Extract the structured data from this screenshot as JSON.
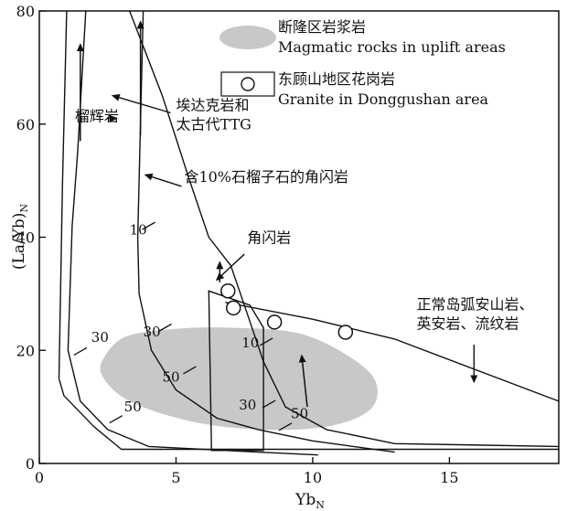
{
  "chart_data": {
    "type": "line",
    "xlabel": "Yb",
    "xlabel_sub": "N",
    "ylabel": "(La/Yb)",
    "ylabel_sub": "N",
    "xlim": [
      0,
      19
    ],
    "ylim": [
      0,
      80
    ],
    "xticks": [
      0,
      5,
      10,
      15
    ],
    "yticks": [
      0,
      20,
      40,
      60,
      80
    ],
    "legend": {
      "placement": "top-right",
      "entries": [
        {
          "marker": "shaded-region",
          "label_cn": "断隆区岩浆岩",
          "label_en": "Magmatic rocks in uplift areas"
        },
        {
          "marker": "open-circle",
          "label_cn": "东顾山地区花岗岩",
          "label_en": "Granite in Donggushan area"
        }
      ]
    },
    "colors": {
      "line": "#111111",
      "shade": "#c8c8c8",
      "marker_fill": "#ffffff"
    },
    "granite_points": {
      "name": "Granite in Donggushan area",
      "x": [
        6.9,
        7.1,
        8.6,
        11.2
      ],
      "y": [
        30.5,
        27.5,
        25.0,
        23.2
      ]
    },
    "shaded_region": {
      "name": "Magmatic rocks in uplift areas",
      "outline": [
        [
          2.4,
          19
        ],
        [
          3.2,
          22.5
        ],
        [
          5,
          23.8
        ],
        [
          7,
          24
        ],
        [
          9.5,
          23
        ],
        [
          11.3,
          19
        ],
        [
          12.3,
          14.5
        ],
        [
          12.1,
          9.5
        ],
        [
          10.5,
          6.5
        ],
        [
          8,
          6
        ],
        [
          5.5,
          7.5
        ],
        [
          3.3,
          11
        ],
        [
          2.3,
          15.5
        ]
      ]
    },
    "curves": [
      {
        "name": "garnet-melting",
        "points": [
          [
            1.0,
            80
          ],
          [
            0.85,
            50
          ],
          [
            0.72,
            15
          ],
          [
            0.9,
            12
          ],
          [
            2.0,
            6.5
          ],
          [
            3.0,
            2.5
          ],
          [
            10,
            2.5
          ],
          [
            19,
            2.5
          ]
        ]
      },
      {
        "name": "garnet-inner",
        "points": [
          [
            1.7,
            80
          ],
          [
            1.4,
            55
          ],
          [
            1.2,
            42
          ],
          [
            1.05,
            20
          ],
          [
            1.5,
            11
          ],
          [
            2.5,
            6
          ],
          [
            4,
            3
          ],
          [
            8,
            2
          ],
          [
            10.2,
            1.5
          ]
        ]
      },
      {
        "name": "garnet-amphibole",
        "points": [
          [
            3.8,
            80
          ],
          [
            3.7,
            60
          ],
          [
            3.6,
            40
          ],
          [
            3.65,
            30
          ],
          [
            4.1,
            20
          ],
          [
            5,
            13
          ],
          [
            6.5,
            8
          ],
          [
            8,
            6
          ],
          [
            10,
            4
          ],
          [
            13,
            2
          ]
        ]
      },
      {
        "name": "amphibole",
        "points": [
          [
            3.3,
            80
          ],
          [
            4.5,
            65
          ],
          [
            5.5,
            50
          ],
          [
            6.2,
            40
          ],
          [
            7,
            35
          ],
          [
            7.5,
            28
          ],
          [
            8.2,
            18
          ],
          [
            9,
            10
          ],
          [
            10.5,
            6
          ],
          [
            13,
            3.5
          ],
          [
            19,
            3
          ]
        ]
      },
      {
        "name": "normal-arc",
        "points": [
          [
            6.8,
            28.5
          ],
          [
            10,
            25.5
          ],
          [
            13,
            22
          ],
          [
            19,
            11
          ]
        ]
      }
    ],
    "box": [
      [
        6.2,
        30.5
      ],
      [
        6.3,
        2.3
      ],
      [
        8.2,
        2.3
      ],
      [
        8.2,
        24
      ],
      [
        7.7,
        28
      ]
    ],
    "arrows": [
      {
        "name": "garnet-arrow",
        "from": [
          1.5,
          57
        ],
        "to": [
          1.5,
          74
        ]
      },
      {
        "name": "garnet-amphibole-arrow",
        "from": [
          3.7,
          58
        ],
        "to": [
          3.7,
          78
        ]
      },
      {
        "name": "amphibole-arrow",
        "from": [
          6.6,
          32
        ],
        "to": [
          6.6,
          35.5
        ]
      },
      {
        "name": "late-arrow",
        "from": [
          9.8,
          10
        ],
        "to": [
          9.6,
          19
        ]
      }
    ],
    "tick_marks": [
      {
        "label": "30",
        "at": [
          1.5,
          19.8
        ],
        "label_pos": [
          1.9,
          21.5
        ]
      },
      {
        "label": "50",
        "at": [
          2.8,
          7.8
        ],
        "label_pos": [
          3.1,
          9.2
        ]
      },
      {
        "label": "10",
        "at": [
          4.0,
          42.0
        ],
        "label_pos": [
          3.3,
          40.5
        ]
      },
      {
        "label": "30",
        "at": [
          4.6,
          24.0
        ],
        "label_pos": [
          3.8,
          22.5
        ]
      },
      {
        "label": "50",
        "at": [
          5.5,
          16.5
        ],
        "label_pos": [
          4.5,
          14.5
        ]
      },
      {
        "label": "10",
        "at": [
          8.3,
          21.5
        ],
        "label_pos": [
          7.4,
          20.5
        ]
      },
      {
        "label": "30",
        "at": [
          8.4,
          10.5
        ],
        "label_pos": [
          7.3,
          9.5
        ]
      },
      {
        "label": "50",
        "at": [
          9.0,
          6.5
        ],
        "label_pos": [
          9.2,
          8.0
        ]
      }
    ],
    "annotations": [
      {
        "lines": [
          "榴辉岩"
        ],
        "pos": [
          1.3,
          60.5
        ],
        "pointer_from": [
          2.5,
          61
        ],
        "pointer_to": [
          2.8,
          61
        ]
      },
      {
        "lines": [
          "埃达克岩和",
          "太古代TTG"
        ],
        "pos": [
          5.0,
          62.5
        ],
        "pointer_from": [
          4.8,
          62
        ],
        "pointer_to": [
          2.7,
          65
        ]
      },
      {
        "lines": [
          "含10%石榴子石的角闪岩"
        ],
        "pos": [
          5.3,
          49.8
        ],
        "pointer_from": [
          5.2,
          49
        ],
        "pointer_to": [
          3.9,
          51
        ]
      },
      {
        "lines": [
          "角闪岩"
        ],
        "pos": [
          7.6,
          39.0
        ],
        "pointer_from": [
          7.5,
          37
        ],
        "pointer_to": [
          6.5,
          32.5
        ]
      },
      {
        "lines": [
          "正常岛弧安山岩、",
          "英安岩、流纹岩"
        ],
        "pos": [
          13.8,
          27.2
        ],
        "pointer_from": [
          15.9,
          21
        ],
        "pointer_to": [
          15.9,
          14.5
        ]
      }
    ]
  }
}
